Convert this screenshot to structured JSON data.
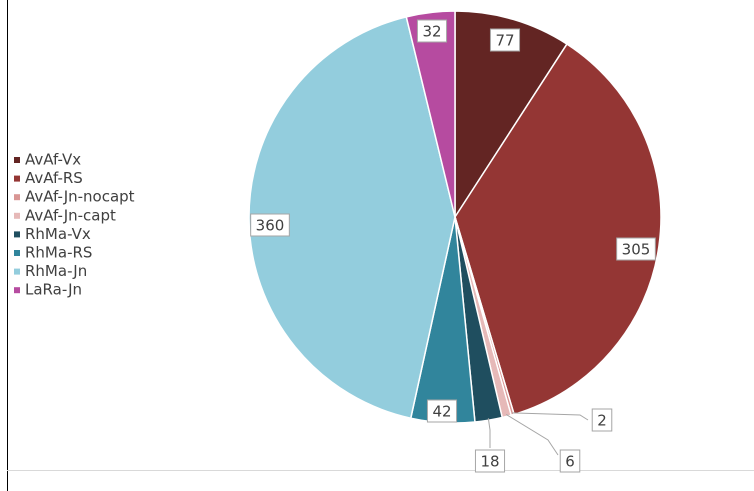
{
  "chart_data": {
    "type": "pie",
    "categories": [
      "AvAf-Vx",
      "AvAf-RS",
      "AvAf-Jn-nocapt",
      "AvAf-Jn-capt",
      "RhMa-Vx",
      "RhMa-RS",
      "RhMa-Jn",
      "LaRa-Jn"
    ],
    "values": [
      77,
      305,
      2,
      6,
      18,
      42,
      360,
      32
    ],
    "colors": [
      "#632523",
      "#943634",
      "#d99694",
      "#e6b9b8",
      "#1f4e5f",
      "#31859c",
      "#93cddd",
      "#b64ba0"
    ]
  }
}
